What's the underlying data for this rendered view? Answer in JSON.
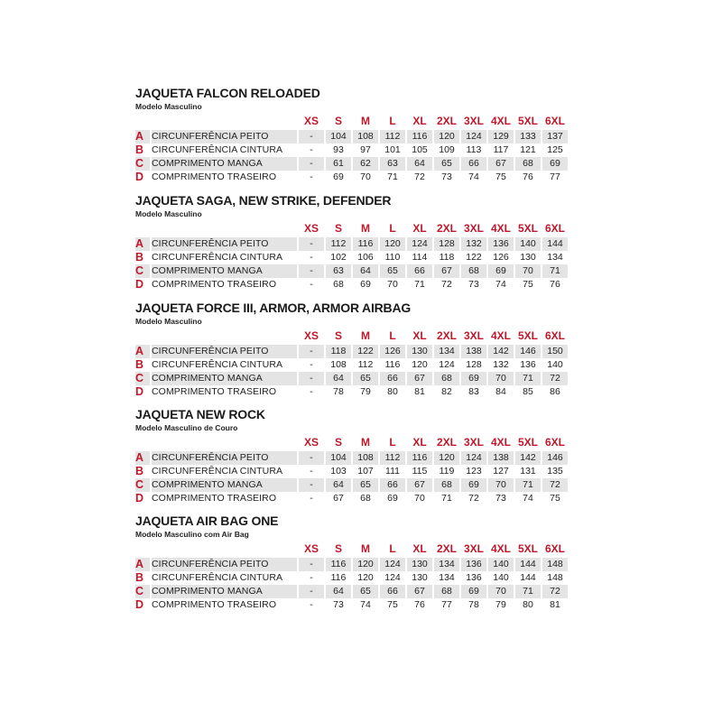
{
  "sizes": [
    "XS",
    "S",
    "M",
    "L",
    "XL",
    "2XL",
    "3XL",
    "4XL",
    "5XL",
    "6XL"
  ],
  "tables": [
    {
      "title": "JAQUETA FALCON RELOADED",
      "subtitle": "Modelo Masculino",
      "rows": [
        {
          "letter": "A",
          "label": "CIRCUNFERÊNCIA PEITO",
          "values": [
            "-",
            "104",
            "108",
            "112",
            "116",
            "120",
            "124",
            "129",
            "133",
            "137"
          ]
        },
        {
          "letter": "B",
          "label": "CIRCUNFERÊNCIA CINTURA",
          "values": [
            "-",
            "93",
            "97",
            "101",
            "105",
            "109",
            "113",
            "117",
            "121",
            "125"
          ]
        },
        {
          "letter": "C",
          "label": "COMPRIMENTO MANGA",
          "values": [
            "-",
            "61",
            "62",
            "63",
            "64",
            "65",
            "66",
            "67",
            "68",
            "69"
          ]
        },
        {
          "letter": "D",
          "label": "COMPRIMENTO TRASEIRO",
          "values": [
            "-",
            "69",
            "70",
            "71",
            "72",
            "73",
            "74",
            "75",
            "76",
            "77"
          ]
        }
      ]
    },
    {
      "title": "JAQUETA SAGA, NEW STRIKE, DEFENDER",
      "subtitle": "Modelo Masculino",
      "rows": [
        {
          "letter": "A",
          "label": "CIRCUNFERÊNCIA PEITO",
          "values": [
            "-",
            "112",
            "116",
            "120",
            "124",
            "128",
            "132",
            "136",
            "140",
            "144"
          ]
        },
        {
          "letter": "B",
          "label": "CIRCUNFERÊNCIA CINTURA",
          "values": [
            "-",
            "102",
            "106",
            "110",
            "114",
            "118",
            "122",
            "126",
            "130",
            "134"
          ]
        },
        {
          "letter": "C",
          "label": "COMPRIMENTO MANGA",
          "values": [
            "-",
            "63",
            "64",
            "65",
            "66",
            "67",
            "68",
            "69",
            "70",
            "71"
          ]
        },
        {
          "letter": "D",
          "label": "COMPRIMENTO TRASEIRO",
          "values": [
            "-",
            "68",
            "69",
            "70",
            "71",
            "72",
            "73",
            "74",
            "75",
            "76"
          ]
        }
      ]
    },
    {
      "title": "JAQUETA FORCE III, ARMOR, ARMOR AIRBAG",
      "subtitle": "Modelo Masculino",
      "rows": [
        {
          "letter": "A",
          "label": "CIRCUNFERÊNCIA PEITO",
          "values": [
            "-",
            "118",
            "122",
            "126",
            "130",
            "134",
            "138",
            "142",
            "146",
            "150"
          ]
        },
        {
          "letter": "B",
          "label": "CIRCUNFERÊNCIA CINTURA",
          "values": [
            "-",
            "108",
            "112",
            "116",
            "120",
            "124",
            "128",
            "132",
            "136",
            "140"
          ]
        },
        {
          "letter": "C",
          "label": "COMPRIMENTO MANGA",
          "values": [
            "-",
            "64",
            "65",
            "66",
            "67",
            "68",
            "69",
            "70",
            "71",
            "72"
          ]
        },
        {
          "letter": "D",
          "label": "COMPRIMENTO TRASEIRO",
          "values": [
            "-",
            "78",
            "79",
            "80",
            "81",
            "82",
            "83",
            "84",
            "85",
            "86"
          ]
        }
      ]
    },
    {
      "title": "JAQUETA NEW ROCK",
      "subtitle": "Modelo Masculino de Couro",
      "rows": [
        {
          "letter": "A",
          "label": "CIRCUNFERÊNCIA PEITO",
          "values": [
            "-",
            "104",
            "108",
            "112",
            "116",
            "120",
            "124",
            "138",
            "142",
            "146"
          ]
        },
        {
          "letter": "B",
          "label": "CIRCUNFERÊNCIA CINTURA",
          "values": [
            "-",
            "103",
            "107",
            "111",
            "115",
            "119",
            "123",
            "127",
            "131",
            "135"
          ]
        },
        {
          "letter": "C",
          "label": "COMPRIMENTO MANGA",
          "values": [
            "-",
            "64",
            "65",
            "66",
            "67",
            "68",
            "69",
            "70",
            "71",
            "72"
          ]
        },
        {
          "letter": "D",
          "label": "COMPRIMENTO TRASEIRO",
          "values": [
            "-",
            "67",
            "68",
            "69",
            "70",
            "71",
            "72",
            "73",
            "74",
            "75"
          ]
        }
      ]
    },
    {
      "title": "JAQUETA AIR BAG ONE",
      "subtitle": "Modelo Masculino com Air Bag",
      "rows": [
        {
          "letter": "A",
          "label": "CIRCUNFERÊNCIA PEITO",
          "values": [
            "-",
            "116",
            "120",
            "124",
            "130",
            "134",
            "136",
            "140",
            "144",
            "148"
          ]
        },
        {
          "letter": "B",
          "label": "CIRCUNFERÊNCIA CINTURA",
          "values": [
            "-",
            "116",
            "120",
            "124",
            "130",
            "134",
            "136",
            "140",
            "144",
            "148"
          ]
        },
        {
          "letter": "C",
          "label": "COMPRIMENTO MANGA",
          "values": [
            "-",
            "64",
            "65",
            "66",
            "67",
            "68",
            "69",
            "70",
            "71",
            "72"
          ]
        },
        {
          "letter": "D",
          "label": "COMPRIMENTO TRASEIRO",
          "values": [
            "-",
            "73",
            "74",
            "75",
            "76",
            "77",
            "78",
            "79",
            "80",
            "81"
          ]
        }
      ]
    }
  ]
}
